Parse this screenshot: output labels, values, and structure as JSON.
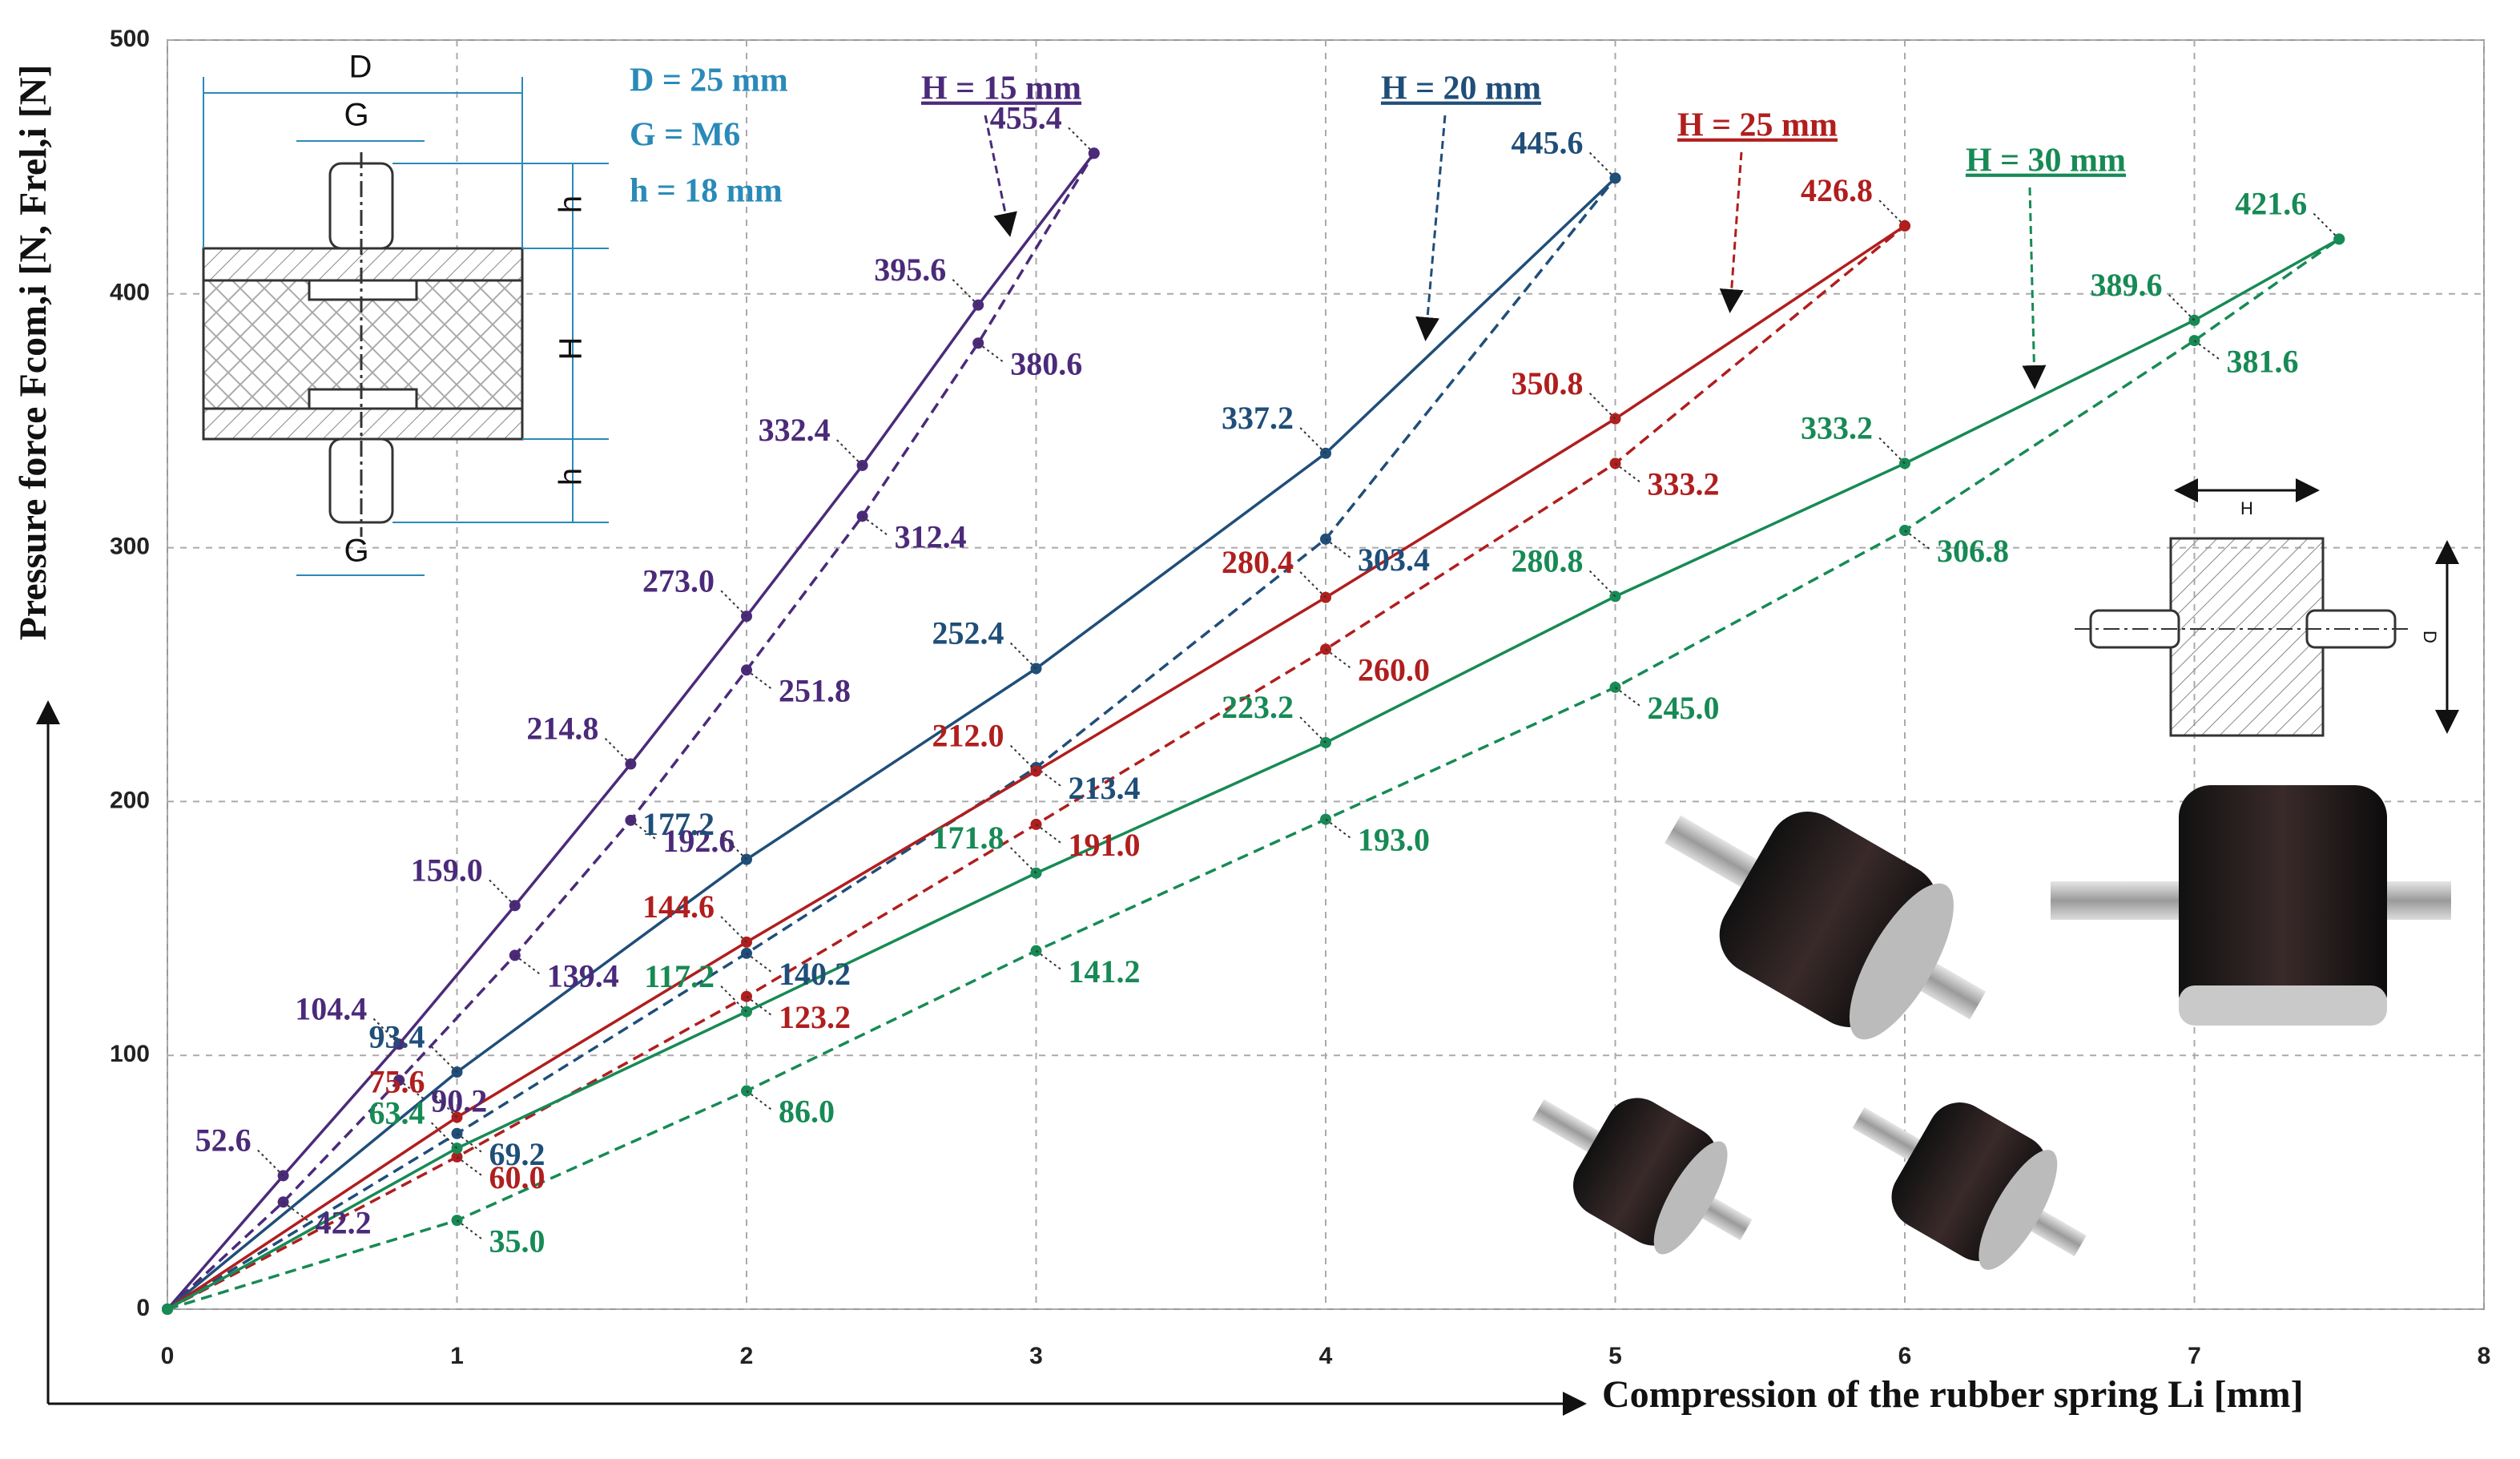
{
  "chart_data": {
    "type": "line",
    "x_label": "Compression of the rubber spring Li [mm]",
    "y_label": "Pressure force Fcom,i [N, Frel,i [N]",
    "xlim": [
      0,
      8
    ],
    "xticks": [
      0,
      1,
      2,
      3,
      4,
      5,
      6,
      7,
      8
    ],
    "ylim": [
      0,
      500
    ],
    "yticks": [
      0,
      100,
      200,
      300,
      400,
      500
    ],
    "grid": true,
    "annotations": [
      "H = 15 mm",
      "H = 20 mm",
      "H = 25 mm",
      "H = 30 mm"
    ],
    "series": [
      {
        "color": "#4b2a7a",
        "dash": false,
        "x": [
          0,
          0.4,
          0.8,
          1.2,
          1.6,
          2.0,
          2.4,
          2.8,
          3.2
        ],
        "values": [
          0,
          52.6,
          104.4,
          159.0,
          214.8,
          273.0,
          332.4,
          395.6,
          455.4
        ],
        "value_labels": [
          null,
          "52.6",
          "104.4",
          "159.0",
          "214.8",
          "273.0",
          "332.4",
          "395.6",
          "455.4"
        ]
      },
      {
        "color": "#4b2a7a",
        "dash": true,
        "x": [
          0,
          0.4,
          0.8,
          1.2,
          1.6,
          2.0,
          2.4,
          2.8,
          3.2
        ],
        "values": [
          0,
          42.2,
          90.2,
          139.4,
          192.6,
          251.8,
          312.4,
          380.6,
          455.4
        ],
        "value_labels": [
          null,
          "42.2",
          "90.2",
          "139.4",
          "192.6",
          "251.8",
          "312.4",
          "380.6",
          null
        ]
      },
      {
        "color": "#1f4e79",
        "dash": false,
        "x": [
          0,
          1,
          2,
          3,
          4,
          5
        ],
        "values": [
          0,
          93.4,
          177.2,
          252.4,
          337.2,
          445.6
        ],
        "value_labels": [
          null,
          "93.4",
          "177.2",
          "252.4",
          "337.2",
          "445.6"
        ]
      },
      {
        "color": "#1f4e79",
        "dash": true,
        "x": [
          0,
          1,
          2,
          3,
          4,
          5
        ],
        "values": [
          0,
          69.2,
          140.2,
          213.4,
          303.4,
          445.6
        ],
        "value_labels": [
          null,
          "69.2",
          "140.2",
          "213.4",
          "303.4",
          null
        ]
      },
      {
        "color": "#b01e1e",
        "dash": false,
        "x": [
          0,
          1,
          2,
          3,
          4,
          5,
          6
        ],
        "values": [
          0,
          75.6,
          144.6,
          212.0,
          280.4,
          350.8,
          426.8
        ],
        "value_labels": [
          null,
          "75.6",
          "144.6",
          "212.0",
          "280.4",
          "350.8",
          "426.8"
        ]
      },
      {
        "color": "#b01e1e",
        "dash": true,
        "x": [
          0,
          1,
          2,
          3,
          4,
          5,
          6
        ],
        "values": [
          0,
          60.0,
          123.2,
          191.0,
          260.0,
          333.2,
          426.8
        ],
        "value_labels": [
          null,
          "60.0",
          "123.2",
          "191.0",
          "260.0",
          "333.2",
          null
        ]
      },
      {
        "color": "#178a55",
        "dash": false,
        "x": [
          0,
          1,
          2,
          3,
          4,
          5,
          6,
          7,
          7.5
        ],
        "values": [
          0,
          63.4,
          117.2,
          171.8,
          223.2,
          280.8,
          333.2,
          389.6,
          421.6
        ],
        "value_labels": [
          null,
          "63.4",
          "117.2",
          "171.8",
          "223.2",
          "280.8",
          "333.2",
          "389.6",
          "421.6"
        ]
      },
      {
        "color": "#178a55",
        "dash": true,
        "x": [
          0,
          1,
          2,
          3,
          4,
          5,
          6,
          7,
          7.5
        ],
        "values": [
          0,
          35.0,
          86.0,
          141.2,
          193.0,
          245.0,
          306.8,
          381.6,
          421.6
        ],
        "value_labels": [
          null,
          "35.0",
          "86.0",
          "141.2",
          "193.0",
          "245.0",
          "306.8",
          "381.6",
          null
        ]
      }
    ]
  },
  "drawing": {
    "parameters": [
      "D = 25 mm",
      "G = M6",
      "h = 18 mm"
    ],
    "dims": [
      "D",
      "G",
      "h",
      "H",
      "h",
      "G"
    ],
    "dims2": [
      "H",
      "D"
    ]
  }
}
